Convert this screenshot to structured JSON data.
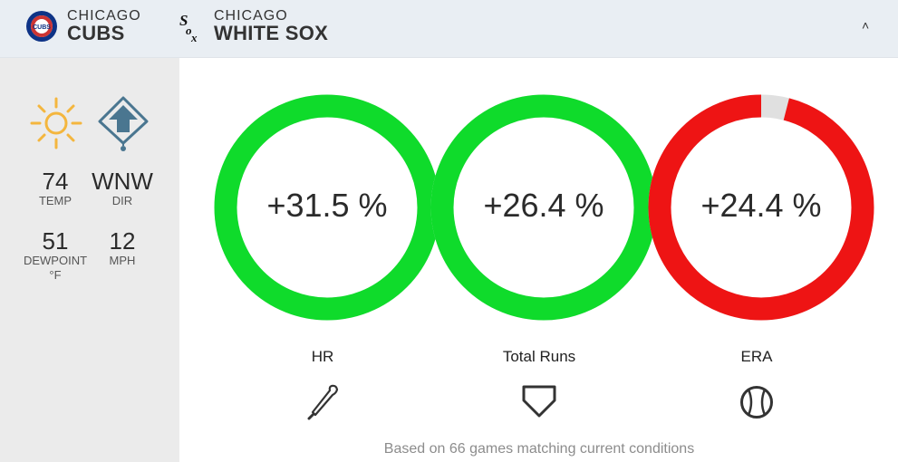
{
  "header": {
    "home": {
      "city": "CHICAGO",
      "name": "CUBS",
      "logo_text": "CUBS",
      "logo_colors": {
        "outer": "#0e3386",
        "ring": "#cc3433",
        "inner": "#ffffff"
      }
    },
    "away": {
      "city": "CHICAGO",
      "name": "WHITE SOX",
      "logo_icon": "white-sox-logo"
    },
    "collapse_icon": "chevron-up-icon",
    "collapse_glyph": "˄"
  },
  "weather": {
    "condition_icon": "sun-icon",
    "direction_icon": "wind-direction-field-icon",
    "temp": {
      "value": "74",
      "label": "TEMP"
    },
    "dir": {
      "value": "WNW",
      "label": "DIR"
    },
    "dewpoint": {
      "value": "51",
      "label": "DEWPOINT",
      "unit": "°F"
    },
    "speed": {
      "value": "12",
      "label": "MPH"
    }
  },
  "metrics": [
    {
      "label": "HR",
      "value_text": "+31.5 %",
      "fill_fraction": 1.0,
      "color": "#0fdb2b",
      "icon": "bat-icon"
    },
    {
      "label": "Total Runs",
      "value_text": "+26.4 %",
      "fill_fraction": 1.0,
      "color": "#0fdb2b",
      "icon": "home-plate-icon"
    },
    {
      "label": "ERA",
      "value_text": "+24.4 %",
      "fill_fraction": 0.96,
      "color": "#ee1414",
      "icon": "baseball-icon"
    }
  ],
  "colors": {
    "positive": "#0fdb2b",
    "negative": "#ee1414",
    "track": "#e0e0e0",
    "sun": "#f4b63e",
    "field_icon": "#4a7690"
  },
  "footer": {
    "note": "Based on 66 games matching current conditions"
  }
}
